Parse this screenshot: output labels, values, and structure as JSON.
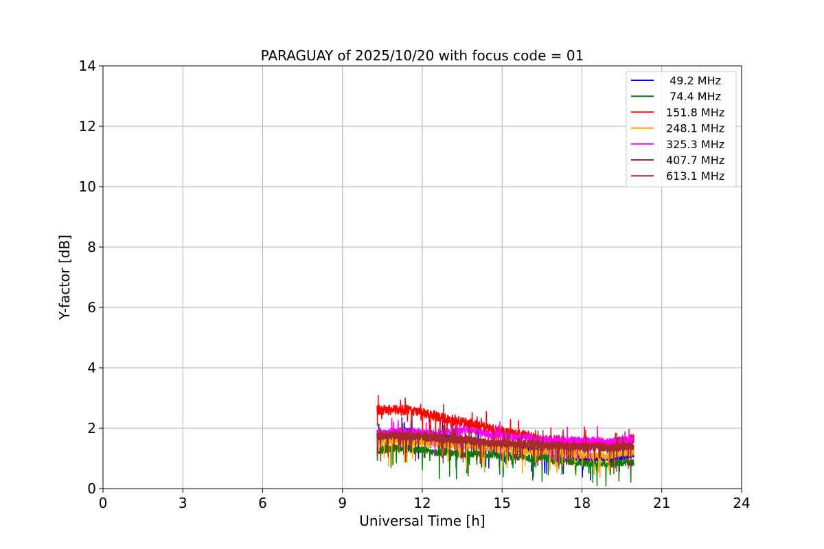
{
  "chart_data": {
    "type": "line",
    "title": "PARAGUAY of 2025/10/20 with focus code = 01",
    "xlabel": "Universal Time [h]",
    "ylabel": "Y-factor [dB]",
    "xlim": [
      0,
      24
    ],
    "ylim": [
      0,
      14
    ],
    "xticks": [
      0,
      3,
      6,
      9,
      12,
      15,
      18,
      21,
      24
    ],
    "yticks": [
      0,
      2,
      4,
      6,
      8,
      10,
      12,
      14
    ],
    "x_tick_labels": [
      "0",
      "3",
      "6",
      "9",
      "12",
      "15",
      "18",
      "21",
      "24"
    ],
    "y_tick_labels": [
      "0",
      "2",
      "4",
      "6",
      "8",
      "10",
      "12",
      "14"
    ],
    "grid": true,
    "legend_position": "top-right",
    "x_range_of_data": [
      10.3,
      19.95
    ],
    "series": [
      {
        "name": " 49.2 MHz",
        "color": "#0000ff",
        "x": [
          10.3,
          10.45,
          11.0,
          11.5,
          12.0,
          12.5,
          13.0,
          13.5,
          14.0,
          14.5,
          15.0,
          15.5,
          16.0,
          16.5,
          17.0,
          17.5,
          18.0,
          18.5,
          19.0,
          19.5,
          19.95
        ],
        "y": [
          1.7,
          1.75,
          1.9,
          1.9,
          1.8,
          1.75,
          1.7,
          1.6,
          1.55,
          1.5,
          1.45,
          1.35,
          1.3,
          1.2,
          1.15,
          1.1,
          1.0,
          1.0,
          0.95,
          1.05,
          1.1
        ]
      },
      {
        "name": " 74.4 MHz",
        "color": "#008000",
        "x": [
          10.3,
          10.45,
          11.0,
          11.5,
          12.0,
          12.5,
          13.0,
          13.5,
          14.0,
          14.5,
          15.0,
          15.5,
          16.0,
          16.5,
          17.0,
          17.5,
          18.0,
          18.5,
          19.0,
          19.5,
          19.95
        ],
        "y": [
          1.3,
          1.25,
          1.35,
          1.3,
          1.3,
          1.2,
          1.2,
          1.15,
          1.15,
          1.1,
          1.1,
          1.05,
          1.0,
          1.0,
          0.95,
          0.9,
          0.85,
          0.85,
          0.8,
          0.85,
          0.85
        ]
      },
      {
        "name": "151.8 MHz",
        "color": "#ff0000",
        "x": [
          10.3,
          10.45,
          11.0,
          11.5,
          12.0,
          12.5,
          13.0,
          13.5,
          14.0,
          14.5,
          15.0,
          15.5,
          16.0,
          16.5,
          17.0,
          17.5,
          18.0,
          18.5,
          19.0,
          19.5,
          19.95
        ],
        "y": [
          2.6,
          2.6,
          2.6,
          2.6,
          2.5,
          2.4,
          2.3,
          2.2,
          2.1,
          2.0,
          1.9,
          1.8,
          1.75,
          1.6,
          1.6,
          1.55,
          1.5,
          1.5,
          1.5,
          1.55,
          1.65
        ]
      },
      {
        "name": "248.1 MHz",
        "color": "#ffa500",
        "x": [
          10.3,
          10.45,
          11.0,
          11.5,
          12.0,
          12.5,
          13.0,
          13.5,
          14.0,
          14.5,
          15.0,
          15.5,
          16.0,
          16.5,
          17.0,
          17.5,
          18.0,
          18.5,
          19.0,
          19.5,
          19.95
        ],
        "y": [
          1.6,
          1.6,
          1.6,
          1.55,
          1.5,
          1.5,
          1.45,
          1.4,
          1.4,
          1.35,
          1.3,
          1.3,
          1.25,
          1.2,
          1.2,
          1.15,
          1.1,
          1.1,
          1.1,
          1.15,
          1.2
        ]
      },
      {
        "name": "325.3 MHz",
        "color": "#ff00ff",
        "x": [
          10.3,
          10.45,
          11.0,
          11.5,
          12.0,
          12.5,
          13.0,
          13.5,
          14.0,
          14.5,
          15.0,
          15.5,
          16.0,
          16.5,
          17.0,
          17.5,
          18.0,
          18.5,
          19.0,
          19.5,
          19.95
        ],
        "y": [
          1.85,
          1.85,
          1.9,
          1.9,
          1.85,
          1.85,
          1.9,
          2.0,
          1.9,
          1.8,
          1.75,
          1.7,
          1.7,
          1.65,
          1.65,
          1.6,
          1.6,
          1.6,
          1.55,
          1.6,
          1.6
        ]
      },
      {
        "name": "407.7 MHz",
        "color": "#a52a2a",
        "x": [
          10.3,
          10.45,
          11.0,
          11.5,
          12.0,
          12.5,
          13.0,
          13.5,
          14.0,
          14.5,
          15.0,
          15.5,
          16.0,
          16.5,
          17.0,
          17.5,
          18.0,
          18.5,
          19.0,
          19.5,
          19.95
        ],
        "y": [
          1.7,
          1.7,
          1.75,
          1.7,
          1.7,
          1.65,
          1.6,
          1.6,
          1.55,
          1.5,
          1.5,
          1.45,
          1.45,
          1.4,
          1.4,
          1.4,
          1.35,
          1.35,
          1.35,
          1.35,
          1.4
        ]
      },
      {
        "name": "613.1 MHz",
        "color": "#a52a2a",
        "x": [
          10.3,
          10.45,
          11.0,
          11.5,
          12.0,
          12.5,
          13.0,
          13.5,
          14.0,
          14.5,
          15.0,
          15.5,
          16.0,
          16.5,
          17.0,
          17.5,
          18.0,
          18.5,
          19.0,
          19.5,
          19.95
        ],
        "y": [
          1.75,
          1.75,
          1.8,
          1.75,
          1.75,
          1.7,
          1.65,
          1.65,
          1.6,
          1.55,
          1.5,
          1.5,
          1.5,
          1.45,
          1.45,
          1.4,
          1.4,
          1.4,
          1.35,
          1.4,
          1.45
        ]
      }
    ]
  }
}
